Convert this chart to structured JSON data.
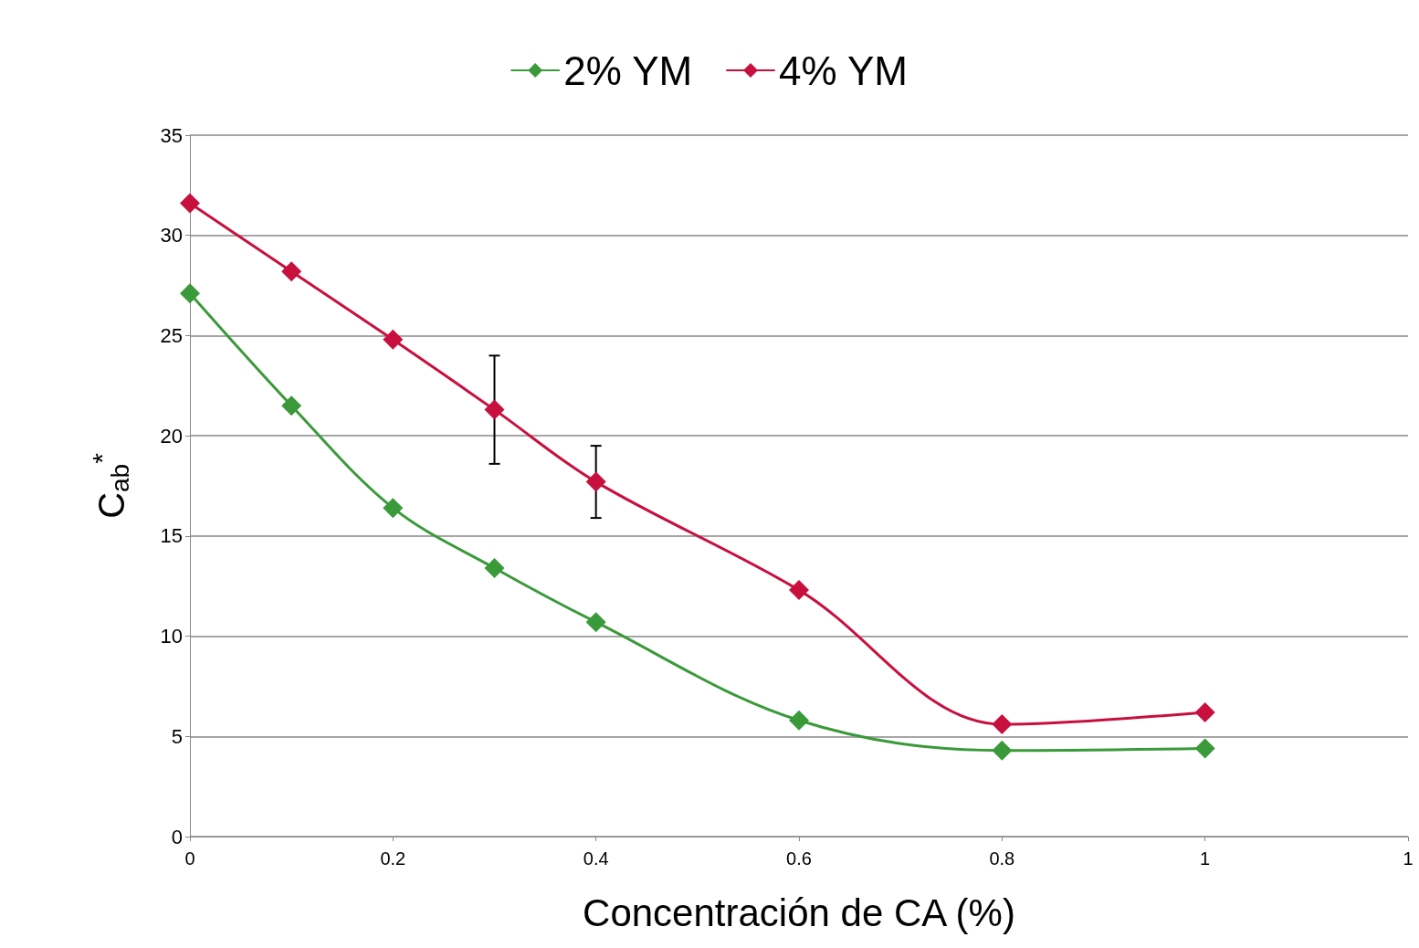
{
  "chart_data": {
    "type": "line",
    "xlabel": "Concentración de CA (%)",
    "ylabel": "C$_{ab}$$^{*}$",
    "xlim": [
      0,
      1.2
    ],
    "xticks": [
      0,
      0.2,
      0.4,
      0.6,
      0.8,
      1,
      {
        "value": 1.2,
        "label": "1"
      }
    ],
    "ylim": [
      0,
      35
    ],
    "yticks": [
      0,
      5,
      10,
      15,
      20,
      25,
      30,
      35
    ],
    "x": [
      0,
      0.1,
      0.2,
      0.3,
      0.4,
      0.6,
      0.8,
      1
    ],
    "series": [
      {
        "name": "2% YM",
        "color": "#3a9a3a",
        "values": [
          27.1,
          21.5,
          16.4,
          13.4,
          10.7,
          5.8,
          4.3,
          4.4
        ]
      },
      {
        "name": "4% YM",
        "color": "#c8103e",
        "values": [
          31.6,
          28.2,
          24.8,
          21.3,
          17.7,
          12.3,
          5.6,
          6.2
        ],
        "errors": [
          null,
          null,
          null,
          [
            18.6,
            24.0
          ],
          [
            15.9,
            19.5
          ],
          null,
          null,
          null
        ]
      }
    ],
    "grid": "y",
    "legend": "top",
    "marker": "diamond",
    "line_style": "solid"
  }
}
